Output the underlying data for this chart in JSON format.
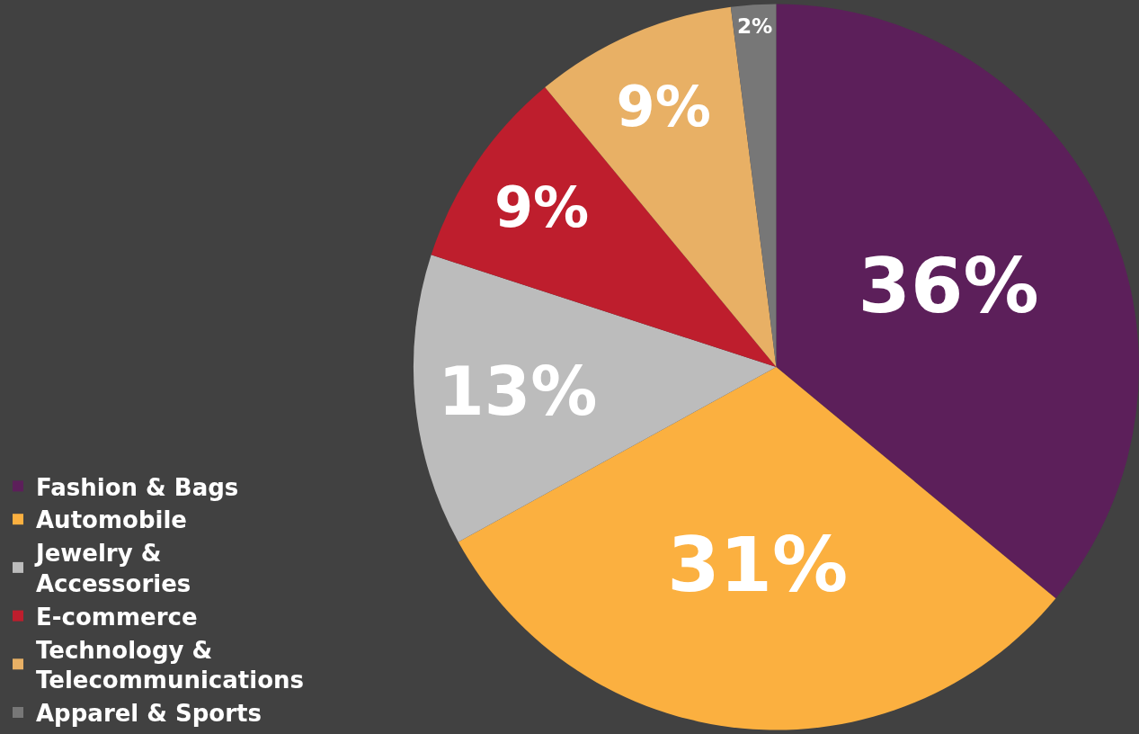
{
  "chart_data": {
    "type": "pie",
    "categories": [
      "Fashion & Bags",
      "Automobile",
      "Jewelry & Accessories",
      "E-commerce",
      "Technology & Telecommunications",
      "Apparel & Sports"
    ],
    "values": [
      36,
      31,
      13,
      9,
      9,
      2
    ],
    "value_labels": [
      "36%",
      "31%",
      "13%",
      "9%",
      "9%",
      "2%"
    ],
    "colors": [
      "#5c1f5a",
      "#fbb040",
      "#bcbcbc",
      "#be1e2d",
      "#e8b065",
      "#777777"
    ],
    "legend": "bottom left"
  }
}
